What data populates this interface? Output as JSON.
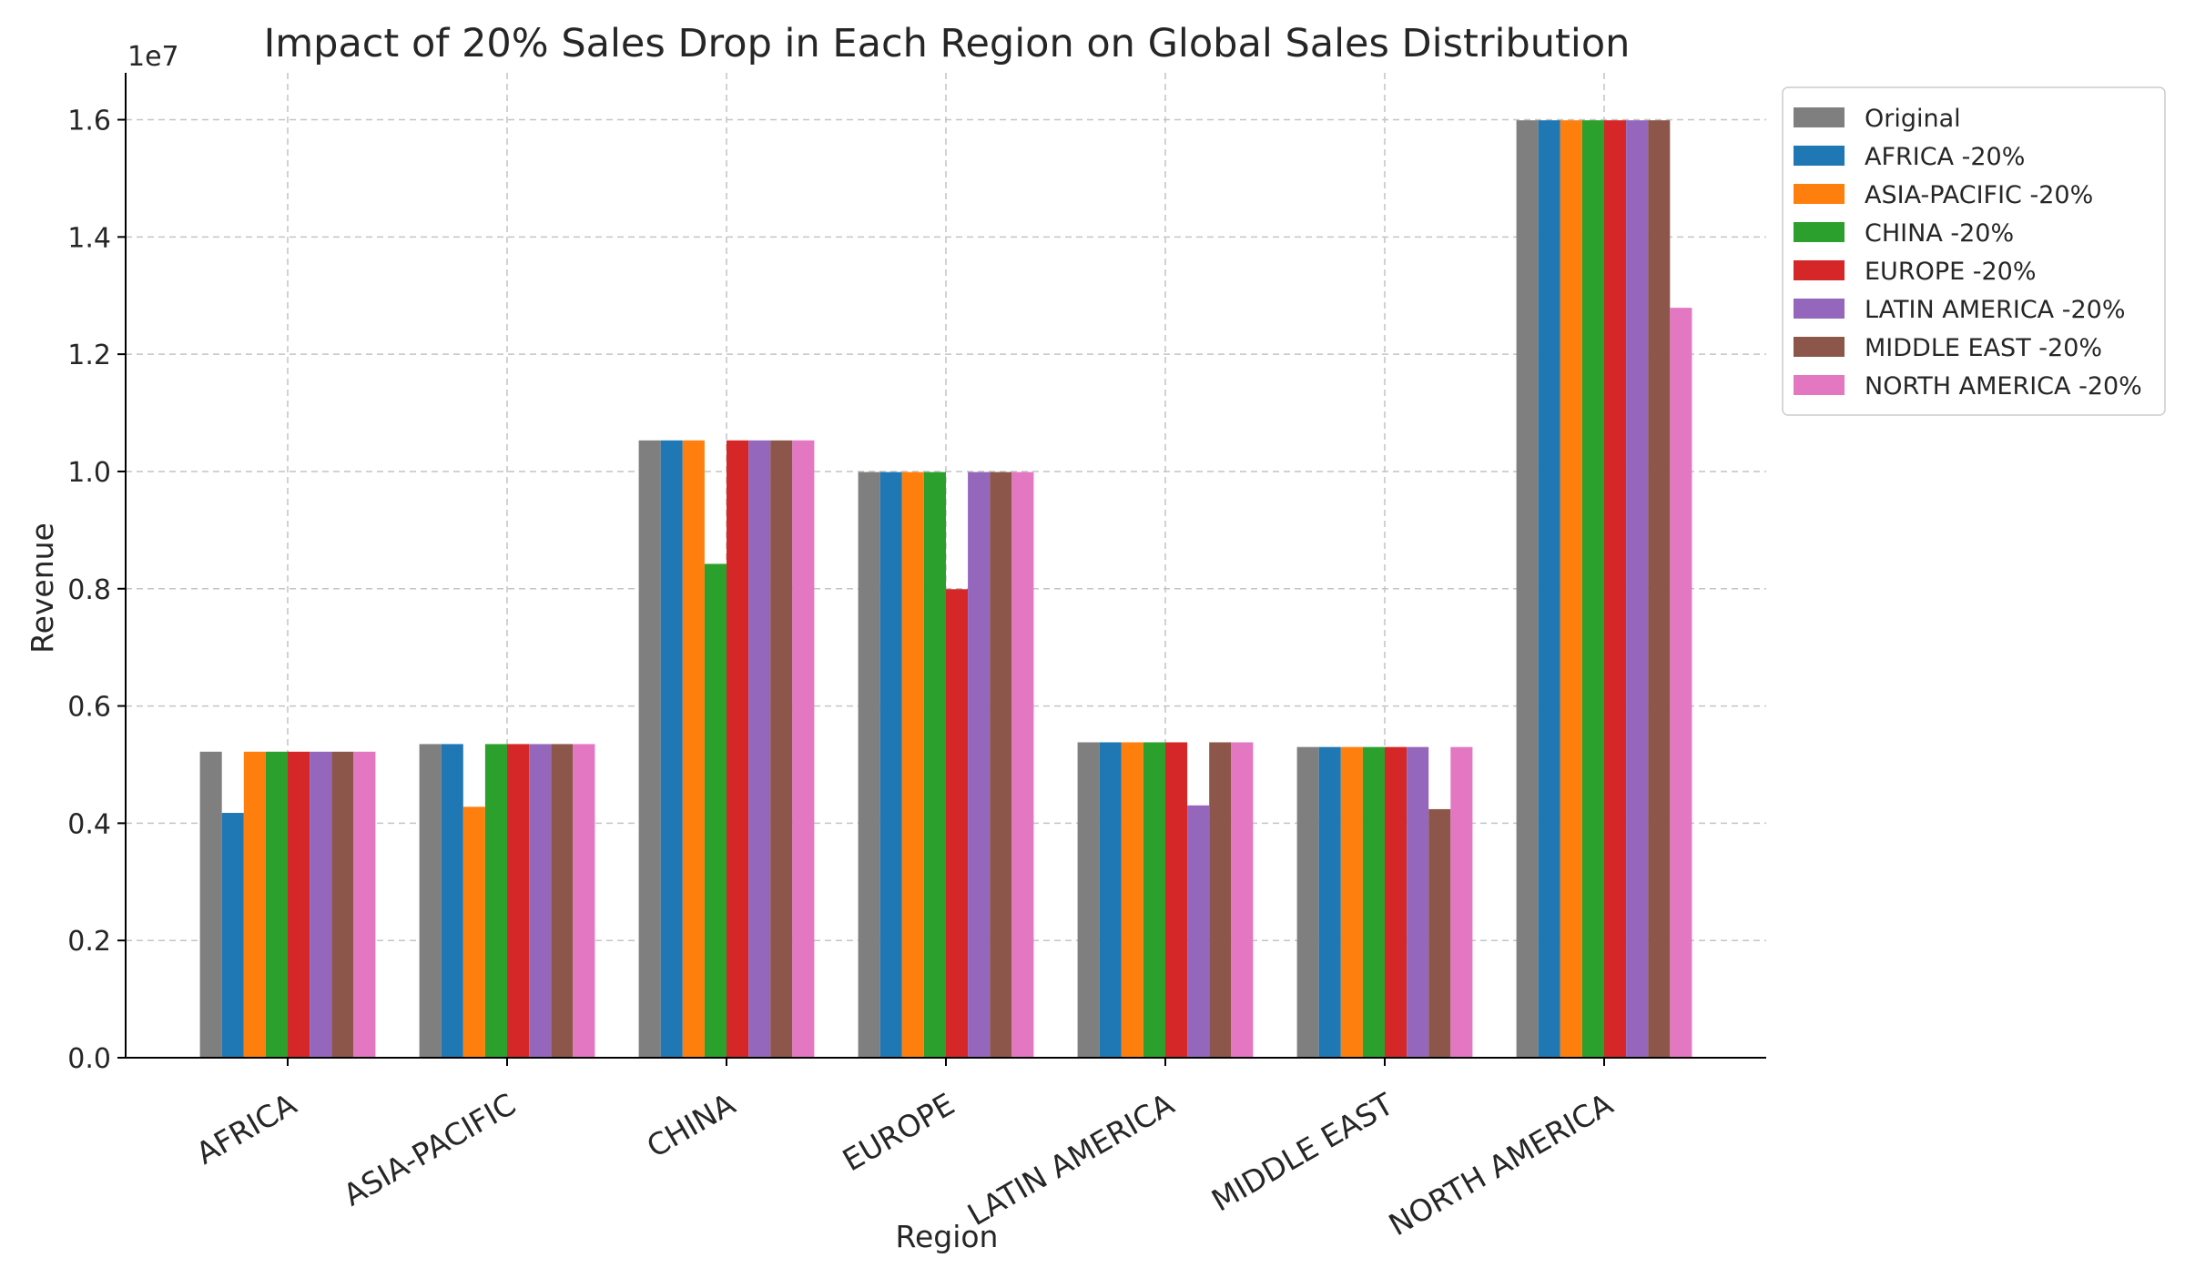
{
  "chart_data": {
    "type": "bar",
    "title": "Impact of 20% Sales Drop in Each Region on Global Sales Distribution",
    "xlabel": "Region",
    "ylabel": "Revenue",
    "y_offset_label": "1e7",
    "y_scale_factor": 10000000,
    "ylim": [
      0,
      16800000
    ],
    "y_ticks": [
      0,
      2000000,
      4000000,
      6000000,
      8000000,
      10000000,
      12000000,
      14000000,
      16000000
    ],
    "y_tick_labels": [
      "0.0",
      "0.2",
      "0.4",
      "0.6",
      "0.8",
      "1.0",
      "1.2",
      "1.4",
      "1.6"
    ],
    "grid": true,
    "legend_position": "upper right, outside plot",
    "categories": [
      "AFRICA",
      "ASIA-PACIFIC",
      "CHINA",
      "EUROPE",
      "LATIN AMERICA",
      "MIDDLE EAST",
      "NORTH AMERICA"
    ],
    "series": [
      {
        "name": "Original",
        "color": "#7f7f7f",
        "values": [
          5220000,
          5350000,
          10530000,
          9990000,
          5380000,
          5300000,
          15990000
        ]
      },
      {
        "name": "AFRICA -20%",
        "color": "#1f77b4",
        "values": [
          4176000,
          5350000,
          10530000,
          9990000,
          5380000,
          5300000,
          15990000
        ]
      },
      {
        "name": "ASIA-PACIFIC -20%",
        "color": "#ff7f0e",
        "values": [
          5220000,
          4280000,
          10530000,
          9990000,
          5380000,
          5300000,
          15990000
        ]
      },
      {
        "name": "CHINA -20%",
        "color": "#2ca02c",
        "values": [
          5220000,
          5350000,
          8424000,
          9990000,
          5380000,
          5300000,
          15990000
        ]
      },
      {
        "name": "EUROPE -20%",
        "color": "#d62728",
        "values": [
          5220000,
          5350000,
          10530000,
          7992000,
          5380000,
          5300000,
          15990000
        ]
      },
      {
        "name": "LATIN AMERICA -20%",
        "color": "#9467bd",
        "values": [
          5220000,
          5350000,
          10530000,
          9990000,
          4304000,
          5300000,
          15990000
        ]
      },
      {
        "name": "MIDDLE EAST -20%",
        "color": "#8c564b",
        "values": [
          5220000,
          5350000,
          10530000,
          9990000,
          5380000,
          4240000,
          15990000
        ]
      },
      {
        "name": "NORTH AMERICA -20%",
        "color": "#e377c2",
        "values": [
          5220000,
          5350000,
          10530000,
          9990000,
          5380000,
          5300000,
          12792000
        ]
      }
    ]
  }
}
